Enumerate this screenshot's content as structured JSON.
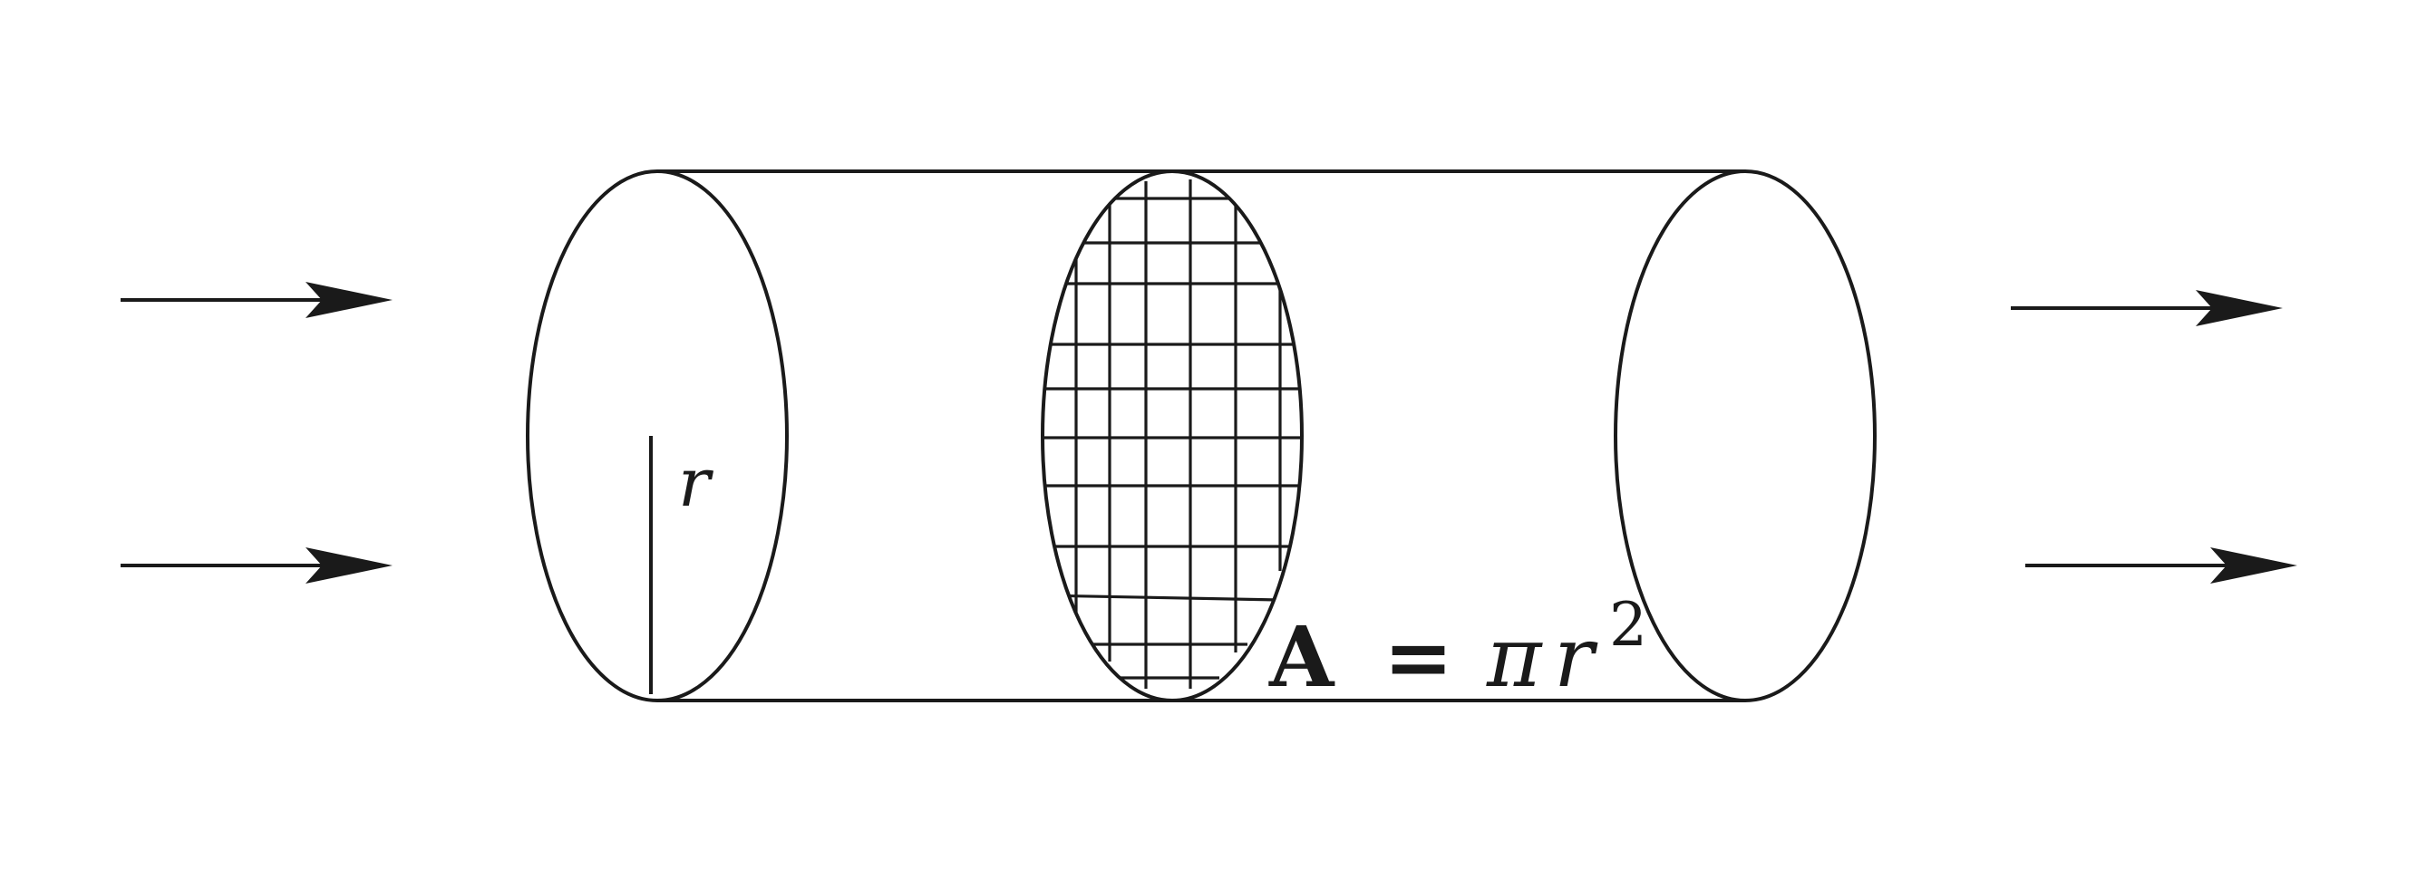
{
  "diagram": {
    "radius_label": "r",
    "area_formula": {
      "lhs": "A",
      "equals": "=",
      "pi": "π",
      "r": "r",
      "exponent": "2"
    },
    "inflow_arrows": 2,
    "outflow_arrows": 2,
    "ink_color": "#1a1a1a",
    "background_color": "#ffffff"
  }
}
